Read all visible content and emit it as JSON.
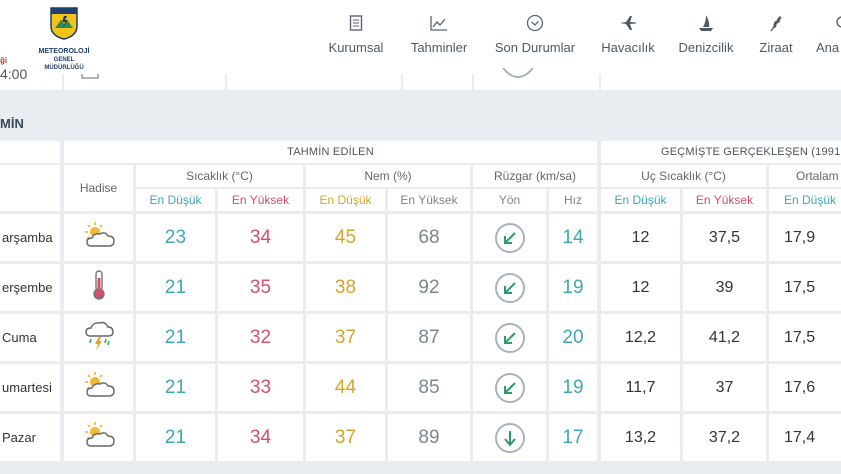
{
  "header": {
    "logo_left_text": "ği",
    "logo_top": "METEOROLOJİ",
    "logo_line1": "METEOROLOJİ",
    "logo_line2": "GENEL MÜDÜRLÜĞÜ",
    "nav": [
      {
        "label": "Kurumsal",
        "icon": "document-icon"
      },
      {
        "label": "Tahminler",
        "icon": "chart-icon"
      },
      {
        "label": "Son Durumlar",
        "icon": "clock-icon"
      },
      {
        "label": "Havacılık",
        "icon": "airplane-icon"
      },
      {
        "label": "Denizcilik",
        "icon": "sailboat-icon"
      },
      {
        "label": "Ziraat",
        "icon": "wheat-icon"
      },
      {
        "label": "Ana",
        "icon": "search-icon"
      }
    ]
  },
  "strip_time": "4:00",
  "section_title": "MİN",
  "table": {
    "group_forecast": "TAHMİN EDİLEN",
    "group_past": "GEÇMİŞTE GERÇEKLEŞEN (1991",
    "col_hadise": "Hadise",
    "sub_temp": "Sıcaklık (°C)",
    "sub_hum": "Nem (%)",
    "sub_wind": "Rüzgar (km/sa)",
    "sub_extreme": "Uç Sıcaklık (°C)",
    "sub_avg": "Ortalam",
    "min_label": "En Düşük",
    "max_label": "En Yüksek",
    "dir_label": "Yön",
    "speed_label": "Hız",
    "rows": [
      {
        "day": "arşamba",
        "icon": "partly-cloudy-icon",
        "tmin": "23",
        "tmax": "34",
        "hmin": "45",
        "hmax": "68",
        "wind_dir": "southwest",
        "speed": "14",
        "xmin": "12",
        "xmax": "37,5",
        "avgmin": "17,9"
      },
      {
        "day": "erşembe",
        "icon": "thermometer-hot-icon",
        "tmin": "21",
        "tmax": "35",
        "hmin": "38",
        "hmax": "92",
        "wind_dir": "southwest",
        "speed": "19",
        "xmin": "12",
        "xmax": "39",
        "avgmin": "17,5"
      },
      {
        "day": "Cuma",
        "icon": "thunderstorm-icon",
        "tmin": "21",
        "tmax": "32",
        "hmin": "37",
        "hmax": "87",
        "wind_dir": "southwest",
        "speed": "20",
        "xmin": "12,2",
        "xmax": "41,2",
        "avgmin": "17,5"
      },
      {
        "day": "umartesi",
        "icon": "partly-cloudy-icon",
        "tmin": "21",
        "tmax": "33",
        "hmin": "44",
        "hmax": "85",
        "wind_dir": "southwest",
        "speed": "19",
        "xmin": "11,7",
        "xmax": "37",
        "avgmin": "17,6"
      },
      {
        "day": "Pazar",
        "icon": "partly-cloudy-icon",
        "tmin": "21",
        "tmax": "34",
        "hmin": "37",
        "hmax": "89",
        "wind_dir": "south",
        "speed": "17",
        "xmin": "13,2",
        "xmax": "37,2",
        "avgmin": "17,4"
      }
    ]
  },
  "colors": {
    "teal": "#3fa6b8",
    "red": "#d2506a",
    "amber": "#d6a52b",
    "gray": "#7d858e",
    "background": "#e9edf1"
  }
}
